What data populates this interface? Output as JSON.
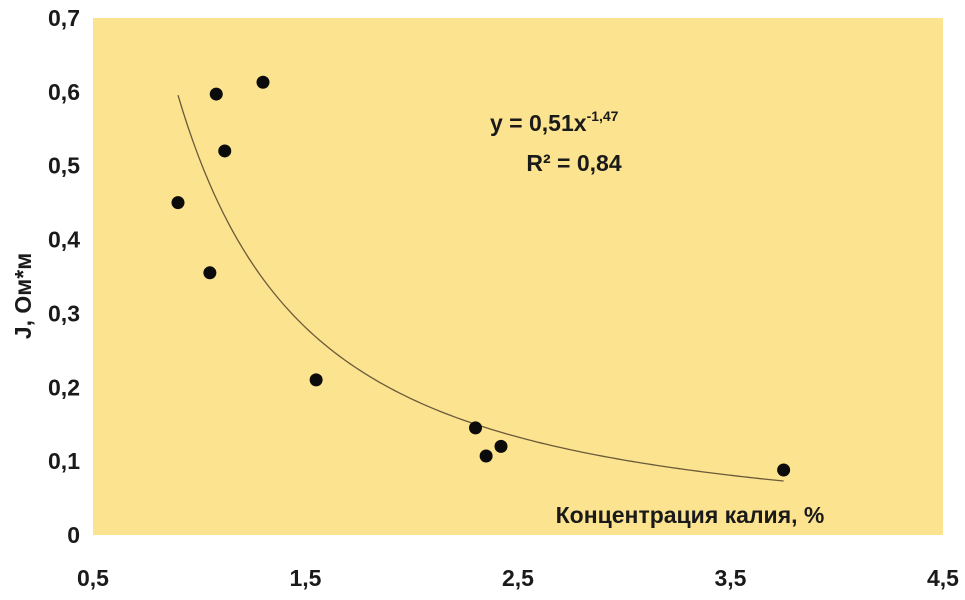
{
  "chart_data": {
    "type": "scatter",
    "xlabel": "Концентрация калия, %",
    "ylabel": "J, Ом*м",
    "xlim": [
      0.5,
      4.5
    ],
    "ylim": [
      0,
      0.7
    ],
    "x_ticks": [
      "0,5",
      "1,5",
      "2,5",
      "3,5",
      "4,5"
    ],
    "y_ticks": [
      "0",
      "0,1",
      "0,2",
      "0,3",
      "0,4",
      "0,5",
      "0,6",
      "0,7"
    ],
    "points": [
      {
        "x": 0.9,
        "y": 0.45
      },
      {
        "x": 1.05,
        "y": 0.355
      },
      {
        "x": 1.08,
        "y": 0.597
      },
      {
        "x": 1.12,
        "y": 0.52
      },
      {
        "x": 1.3,
        "y": 0.613
      },
      {
        "x": 1.55,
        "y": 0.21
      },
      {
        "x": 2.3,
        "y": 0.145
      },
      {
        "x": 2.35,
        "y": 0.107
      },
      {
        "x": 2.42,
        "y": 0.12
      },
      {
        "x": 3.75,
        "y": 0.088
      }
    ],
    "trendline": {
      "type": "power",
      "a": 0.51,
      "b": -1.47,
      "x_range": [
        0.9,
        3.75
      ],
      "equation_main": "y = 0,51x",
      "equation_exp": "-1,47",
      "r2_label": "R² = 0,84"
    },
    "grid": false,
    "legend": "none",
    "colors": {
      "plot_background": "#fce38f",
      "points": "#0b0b0b",
      "trendline": "#6b5a3a",
      "text": "#1a1a1a"
    }
  }
}
